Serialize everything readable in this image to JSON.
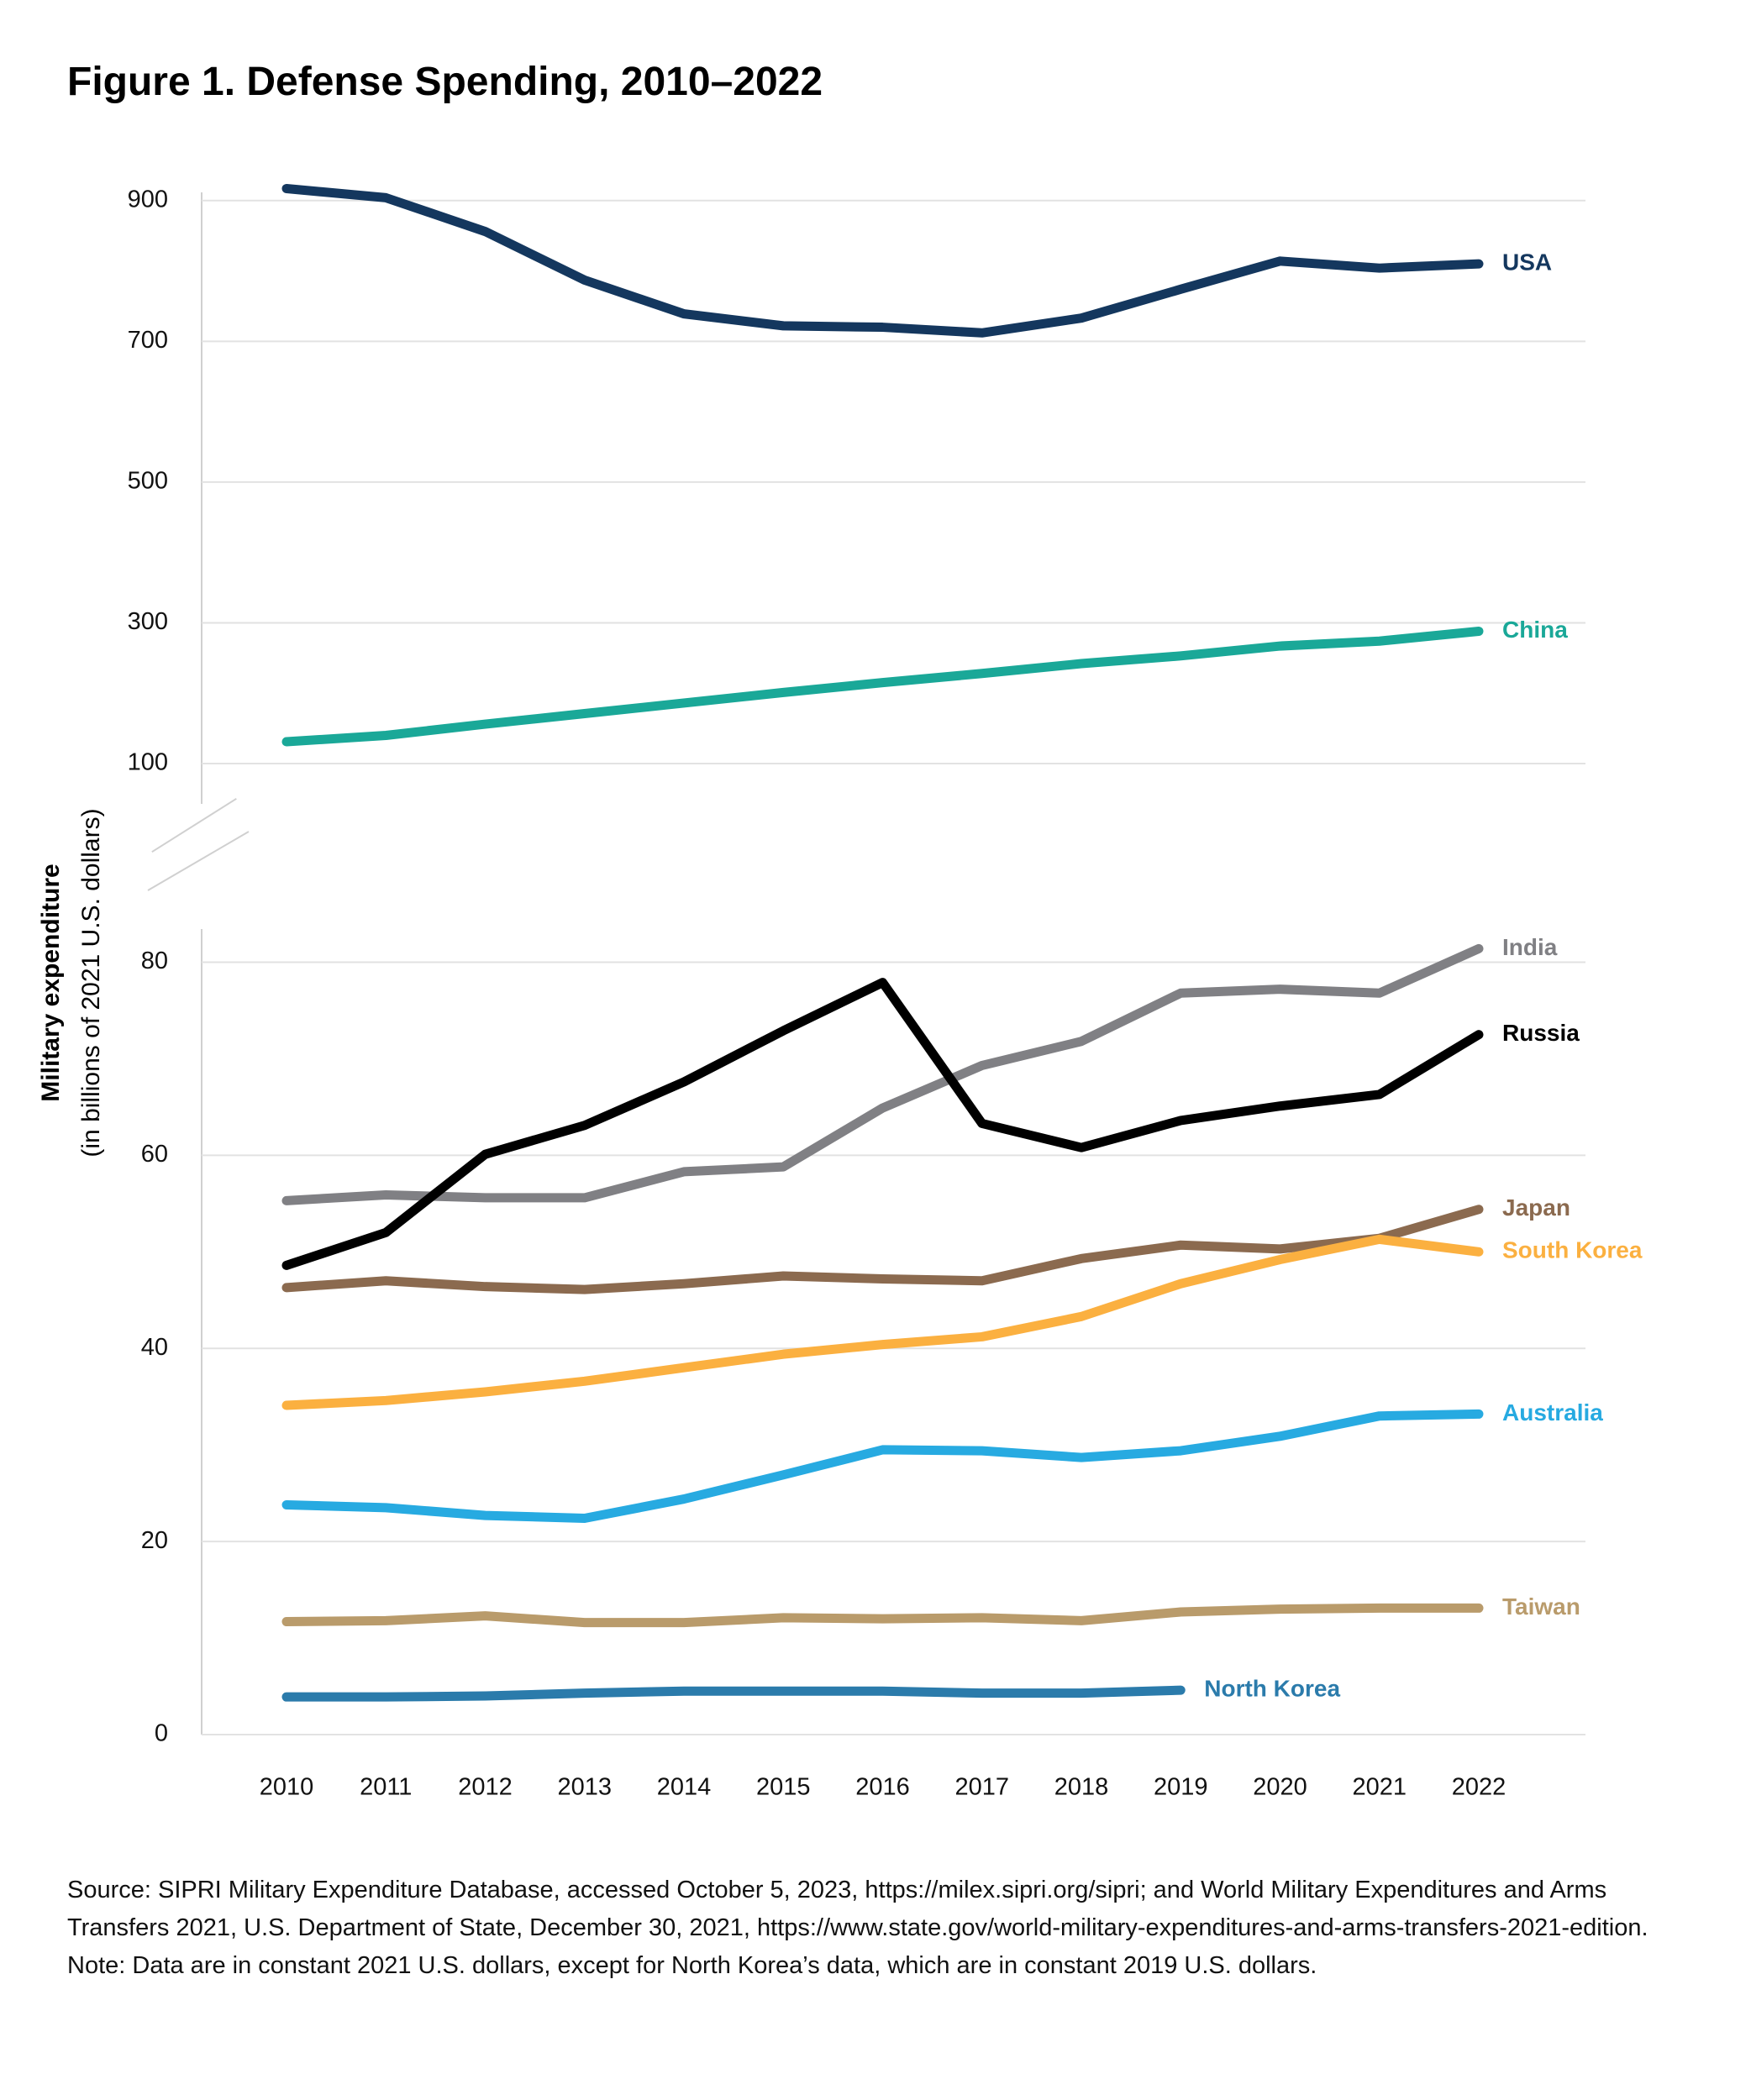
{
  "title": "Figure 1. Defense Spending, 2010–2022",
  "source": "Source: SIPRI Military Expenditure Database, accessed October 5, 2023, https://milex.sipri.org/sipri; and World Military Expenditures and Arms Transfers 2021, U.S. Department of State, December 30, 2021, https://www.state.gov/world-military-expenditures-and-arms-transfers-2021-edition.",
  "note": "Note: Data are in constant 2021 U.S. dollars, except for North Korea’s data, which are in constant 2019 U.S. dollars.",
  "chart_data": {
    "type": "line",
    "y_label": "Military expenditure",
    "y_label_unit": "(in billions of 2021 U.S. dollars)",
    "categories": [
      "2010",
      "2011",
      "2012",
      "2013",
      "2014",
      "2015",
      "2016",
      "2017",
      "2018",
      "2019",
      "2020",
      "2021",
      "2022"
    ],
    "panels": [
      {
        "ylim": [
          100,
          920
        ],
        "yticks": [
          100,
          300,
          500,
          700,
          900
        ]
      },
      {
        "ylim": [
          0,
          83
        ],
        "yticks": [
          0,
          20,
          40,
          60,
          80
        ]
      }
    ],
    "grid": true,
    "series": [
      {
        "name": "USA",
        "color": "#14375e",
        "panel": 0,
        "values": [
          917,
          904,
          856,
          787,
          739,
          722,
          720,
          712,
          733,
          774,
          814,
          804,
          810
        ]
      },
      {
        "name": "China",
        "color": "#1aa898",
        "panel": 0,
        "values": [
          131,
          140,
          156,
          171,
          186,
          201,
          215,
          228,
          242,
          253,
          267,
          274,
          288
        ]
      },
      {
        "name": "India",
        "color": "#808084",
        "panel": 1,
        "values": [
          55.3,
          55.9,
          55.6,
          55.6,
          58.3,
          58.8,
          64.9,
          69.3,
          71.8,
          76.8,
          77.2,
          76.8,
          81.4
        ]
      },
      {
        "name": "Russia",
        "color": "#000000",
        "panel": 1,
        "values": [
          48.6,
          52,
          60.1,
          63.1,
          67.6,
          72.9,
          77.9,
          63.3,
          60.8,
          63.6,
          65.1,
          66.3,
          72.5
        ]
      },
      {
        "name": "Japan",
        "color": "#8b6a4f",
        "panel": 1,
        "values": [
          46.3,
          47,
          46.4,
          46.1,
          46.7,
          47.5,
          47.2,
          47,
          49.3,
          50.7,
          50.3,
          51.4,
          54.4
        ]
      },
      {
        "name": "South Korea",
        "color": "#fbb040",
        "panel": 1,
        "values": [
          34.1,
          34.6,
          35.5,
          36.6,
          38,
          39.4,
          40.4,
          41.2,
          43.3,
          46.7,
          49.2,
          51.3,
          50
        ]
      },
      {
        "name": "Australia",
        "color": "#27aae1",
        "panel": 1,
        "values": [
          23.8,
          23.5,
          22.7,
          22.4,
          24.4,
          26.9,
          29.5,
          29.4,
          28.7,
          29.4,
          30.9,
          33,
          33.2
        ]
      },
      {
        "name": "Taiwan",
        "color": "#b99b6b",
        "panel": 1,
        "values": [
          11.7,
          11.8,
          12.3,
          11.6,
          11.6,
          12.1,
          12,
          12.1,
          11.8,
          12.7,
          13,
          13.1,
          13.1
        ]
      },
      {
        "name": "North Korea",
        "color": "#2b7bab",
        "panel": 1,
        "values": [
          3.9,
          3.9,
          4,
          4.3,
          4.5,
          4.5,
          4.5,
          4.3,
          4.3,
          4.6,
          null,
          null,
          null
        ]
      }
    ]
  }
}
